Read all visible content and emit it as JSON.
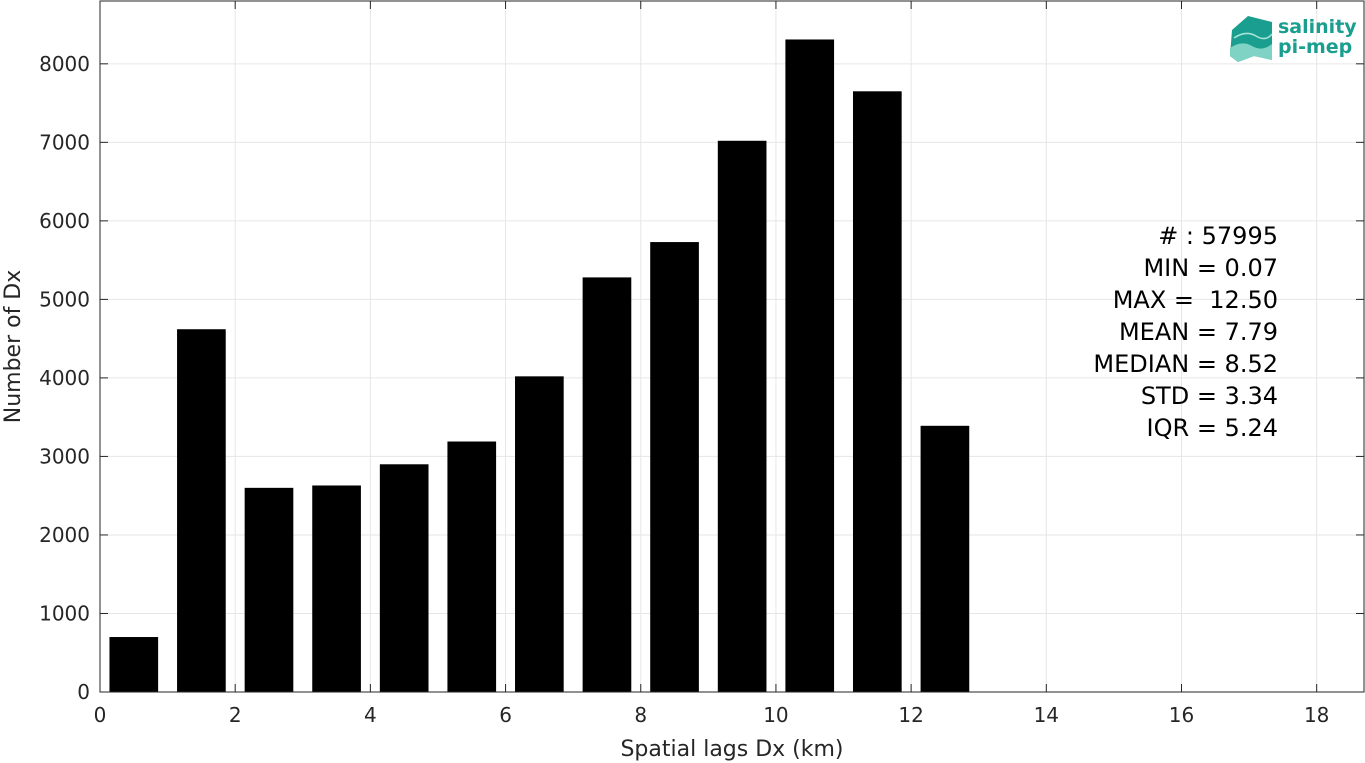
{
  "chart_data": {
    "type": "bar",
    "x": [
      0.5,
      1.5,
      2.5,
      3.5,
      4.5,
      5.5,
      6.5,
      7.5,
      8.5,
      9.5,
      10.5,
      11.5,
      12.5
    ],
    "values": [
      700,
      4620,
      2600,
      2630,
      2900,
      3190,
      4020,
      5280,
      5730,
      7020,
      8310,
      7650,
      3390
    ],
    "xlabel": "Spatial lags Dx (km)",
    "ylabel": "Number of Dx",
    "xlim": [
      0,
      18.7
    ],
    "ylim": [
      0,
      8800
    ],
    "xticks": [
      0,
      2,
      4,
      6,
      8,
      10,
      12,
      14,
      16,
      18
    ],
    "yticks": [
      0,
      1000,
      2000,
      3000,
      4000,
      5000,
      6000,
      7000,
      8000
    ],
    "grid": true,
    "bar_color": "#000000",
    "stats": [
      "# : 57995",
      "MIN = 0.07",
      "MAX =  12.50",
      "MEAN = 7.79",
      "MEDIAN = 8.52",
      "STD = 3.34",
      "IQR = 5.24"
    ]
  },
  "logo": {
    "line1": "salinity",
    "line2": "pi-mep",
    "color": "#1a9e8f"
  }
}
